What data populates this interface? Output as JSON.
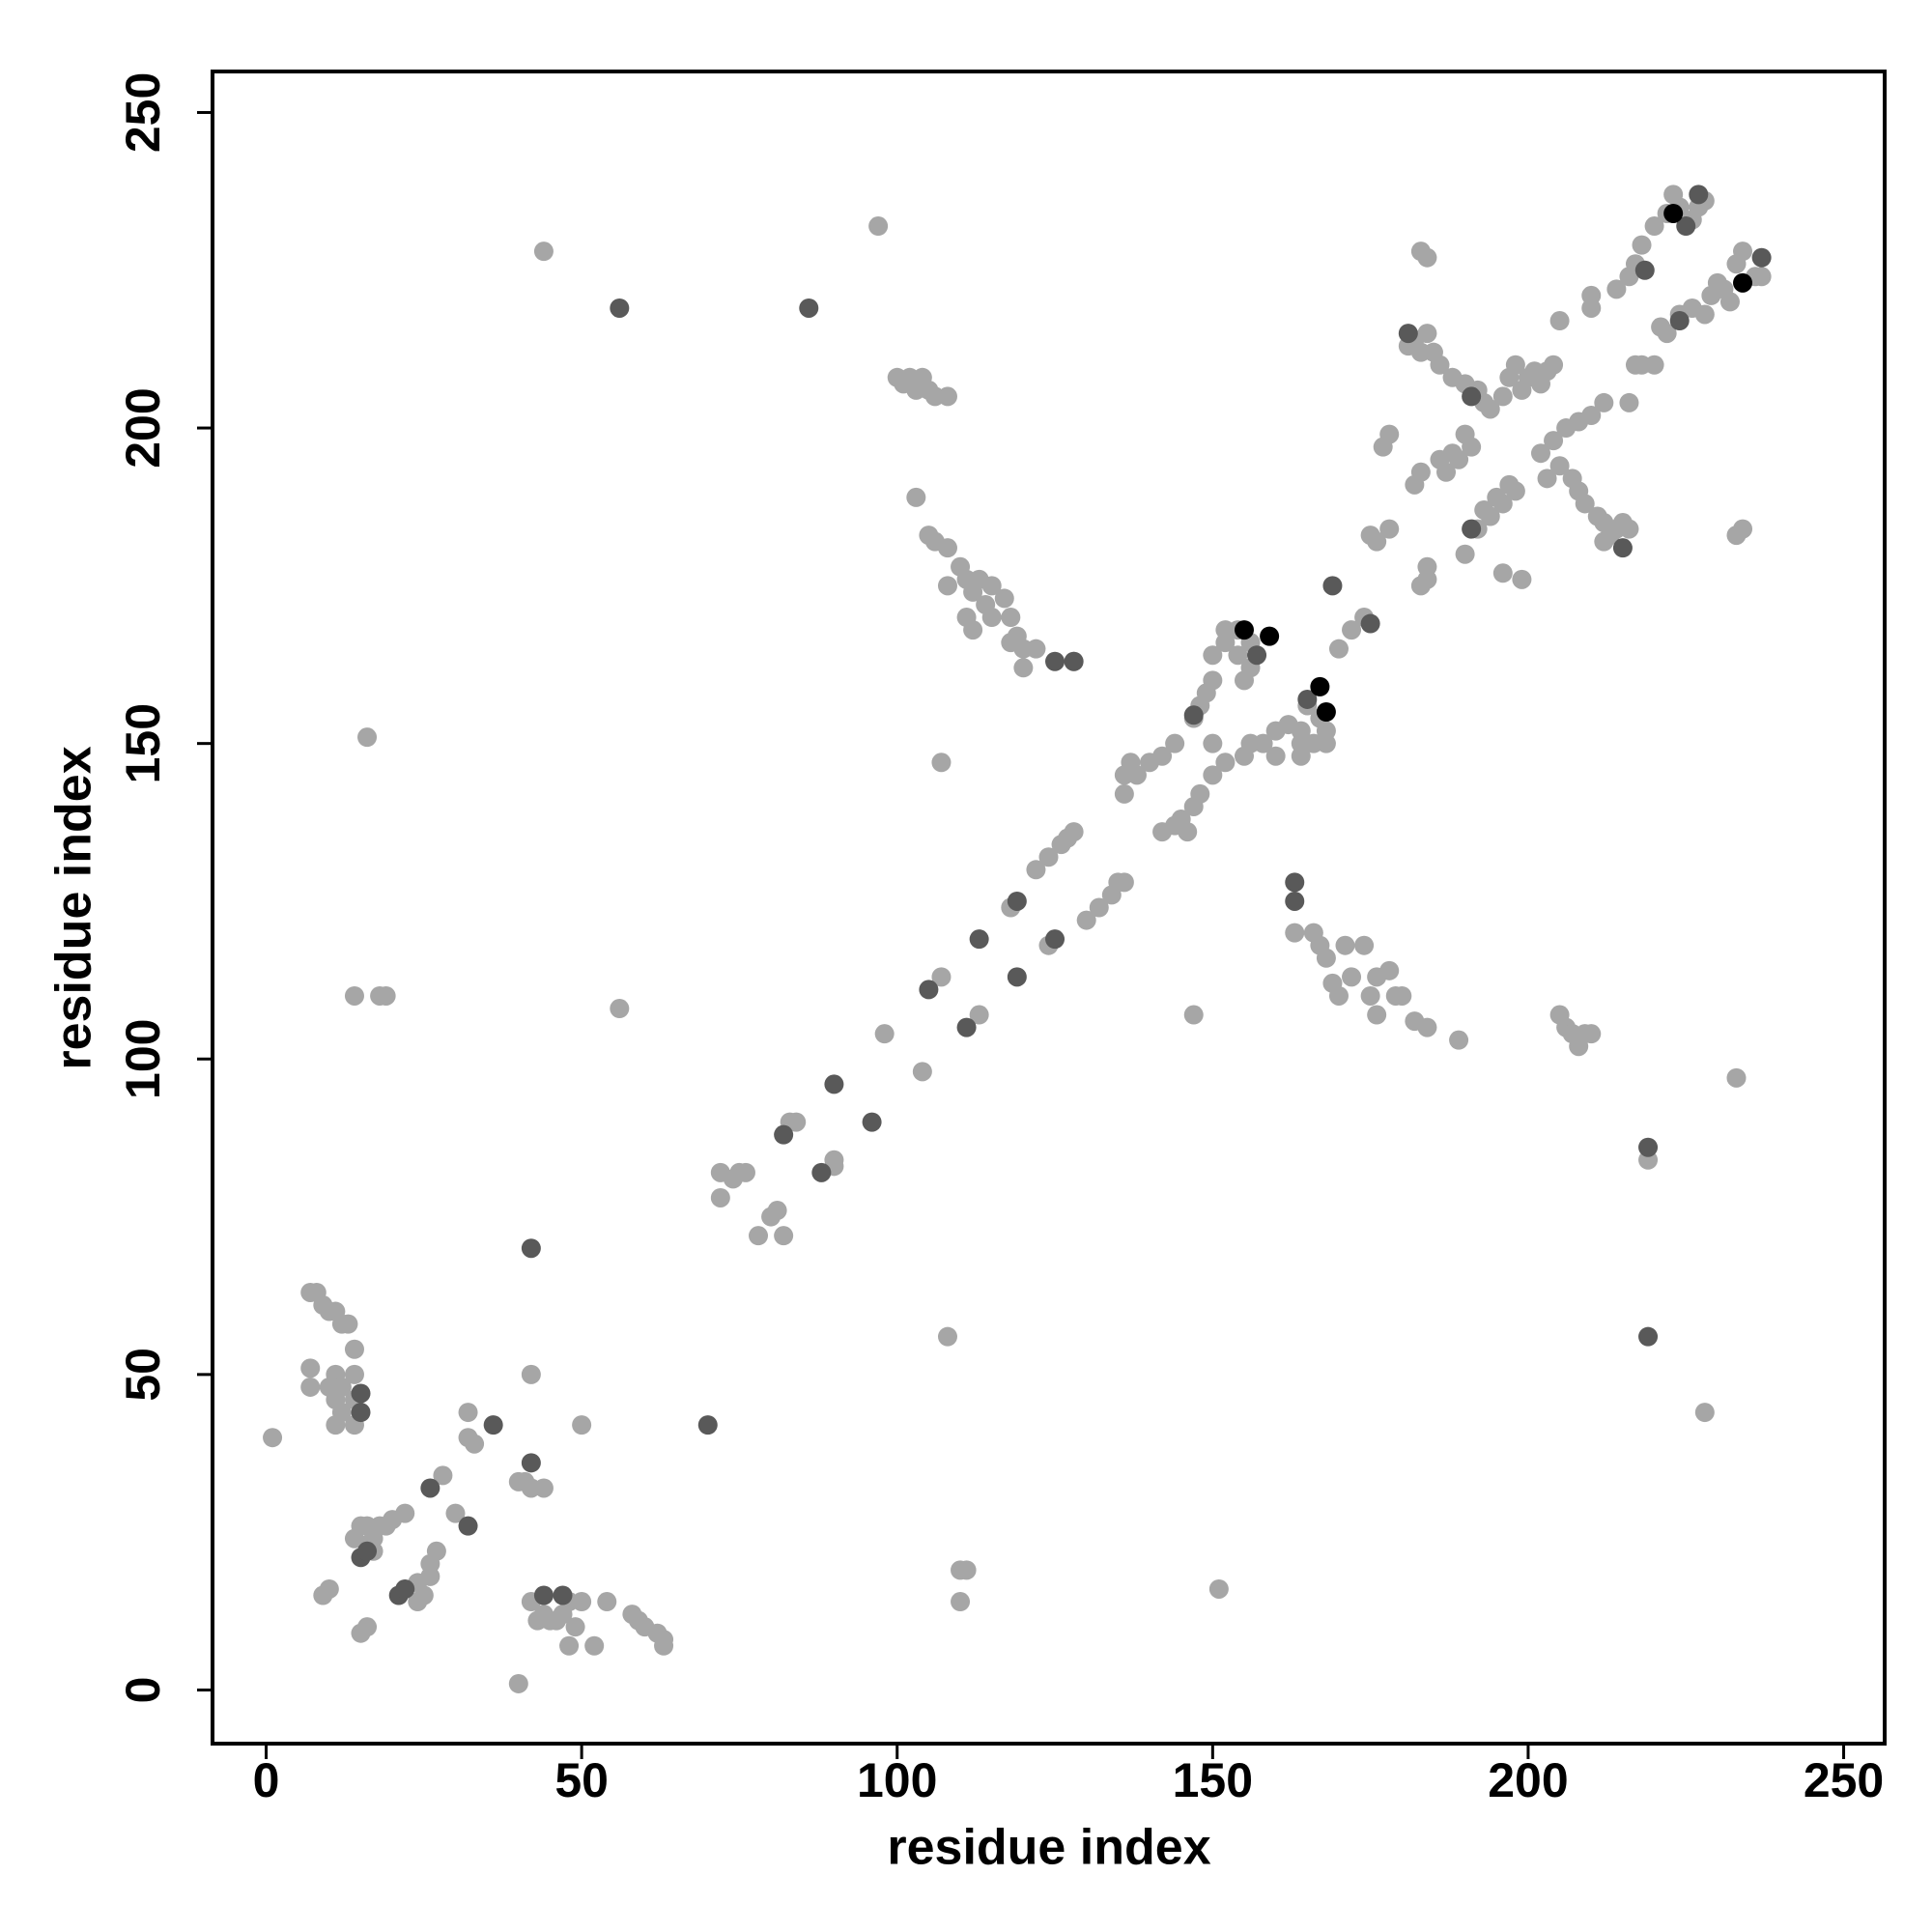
{
  "chart_data": {
    "type": "scatter",
    "x_label": "residue index",
    "y_label": "residue index",
    "xlim": [
      -8.5,
      256.5
    ],
    "ylim": [
      -8.5,
      256.5
    ],
    "xticks": [
      0,
      50,
      100,
      150,
      200,
      250
    ],
    "yticks": [
      0,
      50,
      100,
      150,
      200,
      250
    ],
    "series": [
      {
        "color": "#a6a6a6",
        "x": [
          1,
          7,
          8,
          9,
          10,
          11,
          12,
          13,
          14,
          7,
          7,
          10,
          11,
          11,
          12,
          11,
          14,
          14,
          14,
          12,
          9,
          10,
          15,
          16,
          14,
          15,
          16,
          17,
          18,
          19,
          20,
          22,
          16,
          17,
          24,
          24,
          25,
          26,
          26,
          27,
          28,
          30,
          32,
          32,
          33,
          40,
          41,
          42,
          44,
          42,
          50,
          40,
          42,
          43,
          44,
          46,
          47,
          48,
          49,
          50,
          52,
          54,
          58,
          59,
          60,
          62,
          63,
          63,
          48,
          45,
          72,
          72,
          74,
          75,
          76,
          78,
          80,
          81,
          82,
          83,
          84,
          90,
          90,
          98,
          104,
          107,
          113,
          56,
          108,
          97,
          44,
          16,
          14,
          18,
          19,
          118,
          124,
          122,
          124,
          126,
          127,
          128,
          130,
          132,
          134,
          135,
          136,
          136,
          136,
          137,
          138,
          140,
          142,
          142,
          144,
          145,
          147,
          148,
          146,
          150,
          152,
          150,
          144,
          147,
          148,
          149,
          150,
          150,
          152,
          152,
          154,
          154,
          155,
          156,
          156,
          155,
          156,
          158,
          160,
          160,
          162,
          164,
          164,
          164,
          166,
          168,
          168,
          165,
          167,
          170,
          172,
          174,
          175,
          176,
          178,
          183,
          184,
          184,
          187,
          189,
          191,
          193,
          195,
          197,
          100,
          101,
          102,
          103,
          104,
          105,
          106,
          108,
          103,
          105,
          106,
          108,
          108,
          110,
          111,
          112,
          113,
          114,
          115,
          111,
          112,
          115,
          117,
          118,
          118,
          119,
          120,
          122,
          120,
          107,
          128,
          163,
          166,
          167,
          168,
          169,
          170,
          171,
          172,
          174,
          175,
          176,
          176,
          178,
          179,
          180,
          182,
          184,
          189,
          147,
          151,
          110,
          111,
          110,
          205,
          206,
          207,
          208,
          209,
          210,
          219,
          233,
          228,
          183,
          184,
          181,
          182,
          183,
          184,
          185,
          186,
          188,
          190,
          192,
          193,
          194,
          196,
          197,
          198,
          199,
          200,
          201,
          202,
          203,
          204,
          205,
          182,
          183,
          186,
          188,
          190,
          177,
          178,
          190,
          192,
          194,
          196,
          198,
          196,
          199,
          202,
          204,
          206,
          208,
          210,
          212,
          203,
          205,
          207,
          208,
          209,
          211,
          212,
          213,
          214,
          215,
          216,
          212,
          216,
          217,
          218,
          220,
          210,
          210,
          214,
          216,
          217,
          218,
          220,
          222,
          223,
          224,
          226,
          227,
          228,
          221,
          222,
          224,
          226,
          228,
          229,
          230,
          231,
          232,
          233,
          234,
          236,
          237,
          233,
          234
        ],
        "values": [
          40,
          63,
          63,
          61,
          60,
          60,
          58,
          58,
          54,
          51,
          48,
          48,
          50,
          46,
          44,
          42,
          50,
          46,
          42,
          48,
          15,
          16,
          9,
          10,
          24,
          26,
          26,
          24,
          26,
          26,
          27,
          28,
          23,
          22,
          14,
          17,
          15,
          18,
          20,
          22,
          34,
          28,
          44,
          40,
          39,
          33,
          33,
          32,
          32,
          50,
          42,
          1,
          14,
          11,
          12,
          11,
          12,
          7,
          10,
          14,
          7,
          14,
          12,
          11,
          10,
          9,
          7,
          8,
          14,
          11,
          82,
          78,
          81,
          82,
          82,
          72,
          75,
          76,
          72,
          90,
          90,
          83,
          84,
          104,
          98,
          113,
          107,
          108,
          56,
          232,
          228,
          151,
          110,
          110,
          110,
          124,
          118,
          130,
          132,
          134,
          135,
          136,
          122,
          124,
          126,
          128,
          128,
          142,
          145,
          147,
          145,
          147,
          148,
          136,
          137,
          138,
          140,
          142,
          136,
          145,
          147,
          150,
          150,
          154,
          156,
          158,
          160,
          164,
          166,
          168,
          164,
          168,
          160,
          166,
          162,
          148,
          150,
          150,
          152,
          148,
          153,
          152,
          150,
          148,
          150,
          150,
          152,
          156,
          154,
          165,
          168,
          170,
          183,
          182,
          184,
          175,
          176,
          178,
          193,
          195,
          197,
          187,
          189,
          191,
          208,
          207,
          208,
          206,
          208,
          206,
          205,
          205,
          189,
          183,
          182,
          181,
          175,
          178,
          176,
          174,
          176,
          172,
          175,
          170,
          168,
          170,
          173,
          170,
          166,
          167,
          165,
          165,
          162,
          147,
          163,
          120,
          120,
          118,
          116,
          112,
          110,
          118,
          113,
          118,
          110,
          113,
          107,
          114,
          110,
          110,
          106,
          105,
          103,
          107,
          16,
          19,
          19,
          14,
          107,
          105,
          104,
          102,
          104,
          104,
          84,
          97,
          44,
          228,
          227,
          213,
          214,
          212,
          215,
          212,
          210,
          208,
          207,
          206,
          204,
          203,
          205,
          208,
          210,
          206,
          208,
          209,
          207,
          209,
          210,
          217,
          191,
          193,
          195,
          196,
          199,
          197,
          199,
          180,
          184,
          186,
          188,
          190,
          177,
          176,
          196,
          198,
          200,
          201,
          202,
          204,
          192,
          194,
          192,
          190,
          188,
          186,
          185,
          183,
          184,
          185,
          184,
          182,
          204,
          210,
          210,
          210,
          219,
          221,
          222,
          224,
          226,
          229,
          232,
          234,
          237,
          235,
          233,
          235,
          236,
          216,
          215,
          218,
          219,
          218,
          221,
          223,
          222,
          220,
          226,
          228,
          224,
          224,
          183,
          184
        ]
      },
      {
        "color": "#595959",
        "x": [
          56,
          86,
          42,
          42,
          36,
          70,
          15,
          15,
          26,
          32,
          15,
          16,
          21,
          22,
          44,
          47,
          88,
          82,
          90,
          96,
          105,
          111,
          113,
          119,
          119,
          125,
          125,
          128,
          163,
          163,
          147,
          157,
          169,
          175,
          191,
          181,
          215,
          191,
          218.5,
          224,
          219,
          219,
          227,
          237,
          225,
          165
        ],
        "values": [
          219,
          219,
          70,
          36,
          42,
          42,
          47,
          44,
          32,
          26,
          21,
          22,
          15,
          16,
          15,
          15,
          82,
          88,
          96,
          90,
          111,
          105,
          119,
          113,
          125,
          119,
          163,
          163,
          128,
          125,
          154.5,
          164,
          175,
          169,
          184,
          215,
          181,
          205,
          225,
          217,
          86,
          56,
          237,
          227,
          232,
          157
        ]
      },
      {
        "color": "#000000",
        "x": [
          155,
          159,
          167,
          168,
          223,
          234
        ],
        "values": [
          168,
          167,
          159,
          155,
          234,
          223
        ]
      }
    ]
  }
}
